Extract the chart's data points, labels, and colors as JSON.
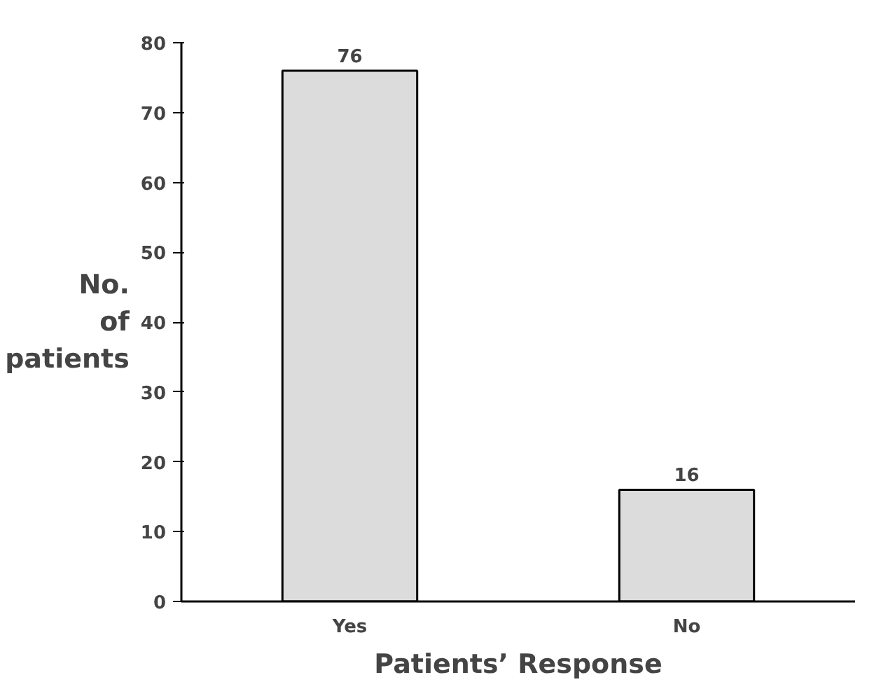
{
  "chart_data": {
    "type": "bar",
    "categories": [
      "Yes",
      "No"
    ],
    "values": [
      76,
      16
    ],
    "color": "#dcdcdc",
    "xlabel": "Patients’ Response",
    "ylabel": "No.\nof\npatients",
    "ylim": [
      0,
      80
    ],
    "yticks": [
      0,
      10,
      20,
      30,
      40,
      50,
      60,
      70,
      80
    ],
    "data_labels": true,
    "grid": false
  }
}
